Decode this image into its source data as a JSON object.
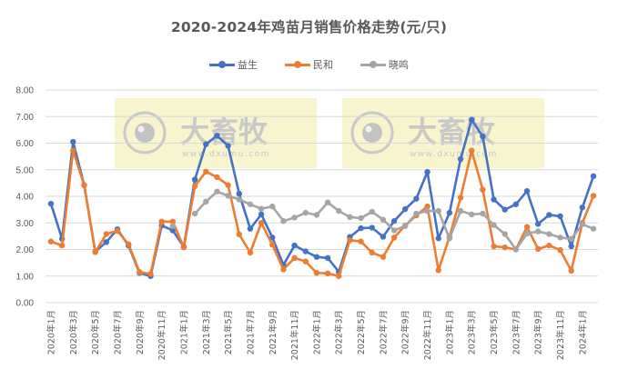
{
  "chart_data": {
    "type": "line",
    "title": "2020-2024年鸡苗月销售价格走势(元/只)",
    "xlabel": "",
    "ylabel": "",
    "ylim": [
      0,
      8
    ],
    "yticks": [
      "0.00",
      "1.00",
      "2.00",
      "3.00",
      "4.00",
      "5.00",
      "6.00",
      "7.00",
      "8.00"
    ],
    "grid": true,
    "legend_position": "top",
    "x_tick_labels": [
      "2020年1月",
      "2020年3月",
      "2020年5月",
      "2020年7月",
      "2020年9月",
      "2020年11月",
      "2021年1月",
      "2021年3月",
      "2021年5月",
      "2021年7月",
      "2021年9月",
      "2021年11月",
      "2022年1月",
      "2022年3月",
      "2022年5月",
      "2022年7月",
      "2022年9月",
      "2022年11月",
      "2023年1月",
      "2023年3月",
      "2023年5月",
      "2023年7月",
      "2023年9月",
      "2023年11月",
      "2024年1月"
    ],
    "x": [
      "2020年1月",
      "2020年2月",
      "2020年3月",
      "2020年4月",
      "2020年5月",
      "2020年6月",
      "2020年7月",
      "2020年8月",
      "2020年9月",
      "2020年10月",
      "2020年11月",
      "2020年12月",
      "2021年1月",
      "2021年2月",
      "2021年3月",
      "2021年4月",
      "2021年5月",
      "2021年6月",
      "2021年7月",
      "2021年8月",
      "2021年9月",
      "2021年10月",
      "2021年11月",
      "2021年12月",
      "2022年1月",
      "2022年2月",
      "2022年3月",
      "2022年4月",
      "2022年5月",
      "2022年6月",
      "2022年7月",
      "2022年8月",
      "2022年9月",
      "2022年10月",
      "2022年11月",
      "2022年12月",
      "2023年1月",
      "2023年2月",
      "2023年3月",
      "2023年4月",
      "2023年5月",
      "2023年6月",
      "2023年7月",
      "2023年8月",
      "2023年9月",
      "2023年10月",
      "2023年11月",
      "2023年12月",
      "2024年1月",
      "2024年2月"
    ],
    "series": [
      {
        "name": "益生",
        "color": "#4472C4",
        "values": [
          3.72,
          2.4,
          6.05,
          4.42,
          1.92,
          2.28,
          2.76,
          2.15,
          1.12,
          1.0,
          2.9,
          2.72,
          2.1,
          4.63,
          5.96,
          6.28,
          5.9,
          4.1,
          2.78,
          3.32,
          2.45,
          1.42,
          2.15,
          1.93,
          1.72,
          1.68,
          1.16,
          2.47,
          2.8,
          2.82,
          2.48,
          3.07,
          3.52,
          3.91,
          4.92,
          2.42,
          3.38,
          5.4,
          6.88,
          6.25,
          3.88,
          3.5,
          3.7,
          4.2,
          2.96,
          3.3,
          3.25,
          2.12,
          3.58,
          4.76
        ]
      },
      {
        "name": "民和",
        "color": "#ED7D31",
        "values": [
          2.3,
          2.15,
          5.72,
          4.42,
          1.9,
          2.58,
          2.7,
          2.2,
          1.15,
          1.08,
          3.05,
          3.05,
          2.08,
          4.38,
          4.93,
          4.72,
          4.42,
          2.57,
          1.88,
          3.0,
          2.18,
          1.25,
          1.68,
          1.55,
          1.12,
          1.1,
          1.0,
          2.35,
          2.3,
          1.88,
          1.72,
          2.45,
          2.9,
          3.28,
          3.62,
          1.22,
          2.48,
          3.95,
          5.72,
          4.25,
          2.12,
          2.08,
          2.0,
          2.85,
          2.02,
          2.15,
          1.98,
          1.2,
          3.0,
          4.02
        ]
      },
      {
        "name": "晓鸣",
        "color": "#A5A5A5",
        "values": [
          null,
          null,
          null,
          null,
          null,
          null,
          null,
          null,
          null,
          null,
          null,
          2.88,
          null,
          3.35,
          3.8,
          4.18,
          4.02,
          3.88,
          3.7,
          3.53,
          3.62,
          3.07,
          3.2,
          3.38,
          3.3,
          3.77,
          3.45,
          3.22,
          3.18,
          3.42,
          3.12,
          2.72,
          2.88,
          3.35,
          3.45,
          3.45,
          2.42,
          3.45,
          3.32,
          3.35,
          2.92,
          2.58,
          2.0,
          2.6,
          2.68,
          2.58,
          2.45,
          2.4,
          2.95,
          2.78
        ]
      }
    ]
  },
  "watermarks": [
    {
      "brand": "大畜牧",
      "url": "www.dxumu.com"
    },
    {
      "brand": "大畜牧",
      "url": "www.dxumu.com"
    }
  ]
}
